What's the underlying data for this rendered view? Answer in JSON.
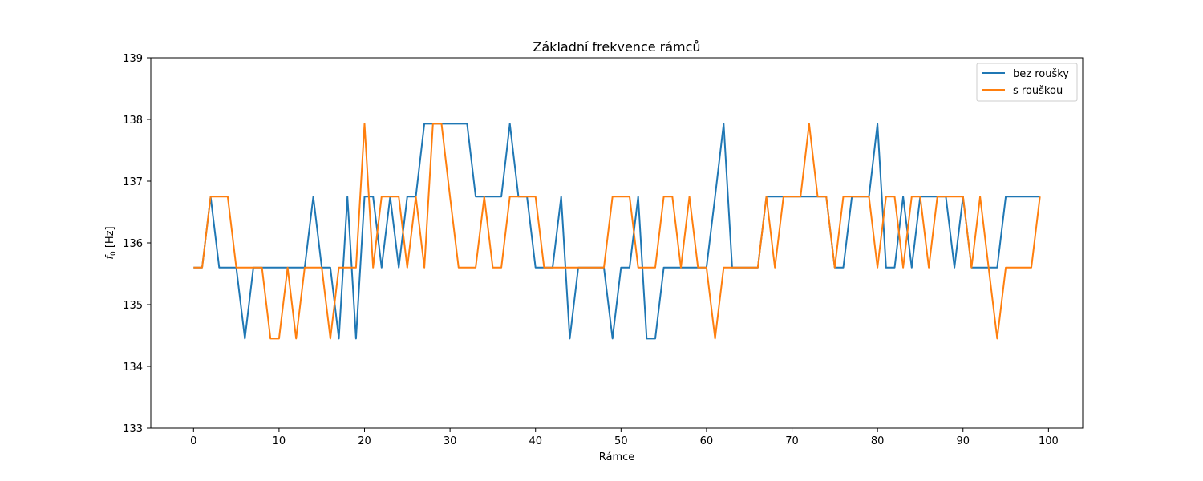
{
  "chart_data": {
    "type": "line",
    "title": "Základní frekvence rámců",
    "xlabel": "Rámce",
    "ylabel_symbol": "f",
    "ylabel_sub": "0",
    "ylabel_unit": " [Hz]",
    "xlim": [
      -5,
      104
    ],
    "ylim": [
      133,
      139
    ],
    "xticks": [
      0,
      10,
      20,
      30,
      40,
      50,
      60,
      70,
      80,
      90,
      100
    ],
    "yticks": [
      133,
      134,
      135,
      136,
      137,
      138,
      139
    ],
    "legend_position": "upper right",
    "grid": false,
    "series": [
      {
        "name": "bez roušky",
        "color": "#1f77b4",
        "x": [
          0,
          1,
          2,
          3,
          4,
          5,
          6,
          7,
          8,
          9,
          10,
          11,
          12,
          13,
          14,
          15,
          16,
          17,
          18,
          19,
          20,
          21,
          22,
          23,
          24,
          25,
          26,
          27,
          28,
          29,
          30,
          31,
          32,
          33,
          34,
          35,
          36,
          37,
          38,
          39,
          40,
          41,
          42,
          43,
          44,
          45,
          46,
          47,
          48,
          49,
          50,
          51,
          52,
          53,
          54,
          55,
          56,
          57,
          58,
          59,
          60,
          61,
          62,
          63,
          64,
          65,
          66,
          67,
          68,
          69,
          70,
          71,
          72,
          73,
          74,
          75,
          76,
          77,
          78,
          79,
          80,
          81,
          82,
          83,
          84,
          85,
          86,
          87,
          88,
          89,
          90,
          91,
          92,
          93,
          94,
          95,
          96,
          97,
          98,
          99
        ],
        "values": [
          135.6,
          135.6,
          136.75,
          135.6,
          135.6,
          135.6,
          134.45,
          135.6,
          135.6,
          135.6,
          135.6,
          135.6,
          135.6,
          135.6,
          136.75,
          135.6,
          135.6,
          134.45,
          136.75,
          134.45,
          136.75,
          136.75,
          135.6,
          136.75,
          135.6,
          136.75,
          136.75,
          137.93,
          137.93,
          137.93,
          137.93,
          137.93,
          137.93,
          136.75,
          136.75,
          136.75,
          136.75,
          137.93,
          136.75,
          136.75,
          135.6,
          135.6,
          135.6,
          136.75,
          134.45,
          135.6,
          135.6,
          135.6,
          135.6,
          134.45,
          135.6,
          135.6,
          136.75,
          134.45,
          134.45,
          135.6,
          135.6,
          135.6,
          135.6,
          135.6,
          135.6,
          136.75,
          137.93,
          135.6,
          135.6,
          135.6,
          135.6,
          136.75,
          136.75,
          136.75,
          136.75,
          136.75,
          136.75,
          136.75,
          136.75,
          135.6,
          135.6,
          136.75,
          136.75,
          136.75,
          137.93,
          135.6,
          135.6,
          136.75,
          135.6,
          136.75,
          136.75,
          136.75,
          136.75,
          135.6,
          136.75,
          135.6,
          135.6,
          135.6,
          135.6,
          136.75,
          136.75,
          136.75,
          136.75,
          136.75
        ]
      },
      {
        "name": "s rouškou",
        "color": "#ff7f0e",
        "x": [
          0,
          1,
          2,
          3,
          4,
          5,
          6,
          7,
          8,
          9,
          10,
          11,
          12,
          13,
          14,
          15,
          16,
          17,
          18,
          19,
          20,
          21,
          22,
          23,
          24,
          25,
          26,
          27,
          28,
          29,
          30,
          31,
          32,
          33,
          34,
          35,
          36,
          37,
          38,
          39,
          40,
          41,
          42,
          43,
          44,
          45,
          46,
          47,
          48,
          49,
          50,
          51,
          52,
          53,
          54,
          55,
          56,
          57,
          58,
          59,
          60,
          61,
          62,
          63,
          64,
          65,
          66,
          67,
          68,
          69,
          70,
          71,
          72,
          73,
          74,
          75,
          76,
          77,
          78,
          79,
          80,
          81,
          82,
          83,
          84,
          85,
          86,
          87,
          88,
          89,
          90,
          91,
          92,
          93,
          94,
          95,
          96,
          97,
          98,
          99
        ],
        "values": [
          135.6,
          135.6,
          136.75,
          136.75,
          136.75,
          135.6,
          135.6,
          135.6,
          135.6,
          134.45,
          134.45,
          135.6,
          134.45,
          135.6,
          135.6,
          135.6,
          134.45,
          135.6,
          135.6,
          135.6,
          137.93,
          135.6,
          136.75,
          136.75,
          136.75,
          135.6,
          136.75,
          135.6,
          137.93,
          137.93,
          136.75,
          135.6,
          135.6,
          135.6,
          136.75,
          135.6,
          135.6,
          136.75,
          136.75,
          136.75,
          136.75,
          135.6,
          135.6,
          135.6,
          135.6,
          135.6,
          135.6,
          135.6,
          135.6,
          136.75,
          136.75,
          136.75,
          135.6,
          135.6,
          135.6,
          136.75,
          136.75,
          135.6,
          136.75,
          135.6,
          135.6,
          134.45,
          135.6,
          135.6,
          135.6,
          135.6,
          135.6,
          136.75,
          135.6,
          136.75,
          136.75,
          136.75,
          137.93,
          136.75,
          136.75,
          135.6,
          136.75,
          136.75,
          136.75,
          136.75,
          135.6,
          136.75,
          136.75,
          135.6,
          136.75,
          136.75,
          135.6,
          136.75,
          136.75,
          136.75,
          136.75,
          135.6,
          136.75,
          135.6,
          134.45,
          135.6,
          135.6,
          135.6,
          135.6,
          136.75
        ]
      }
    ]
  }
}
